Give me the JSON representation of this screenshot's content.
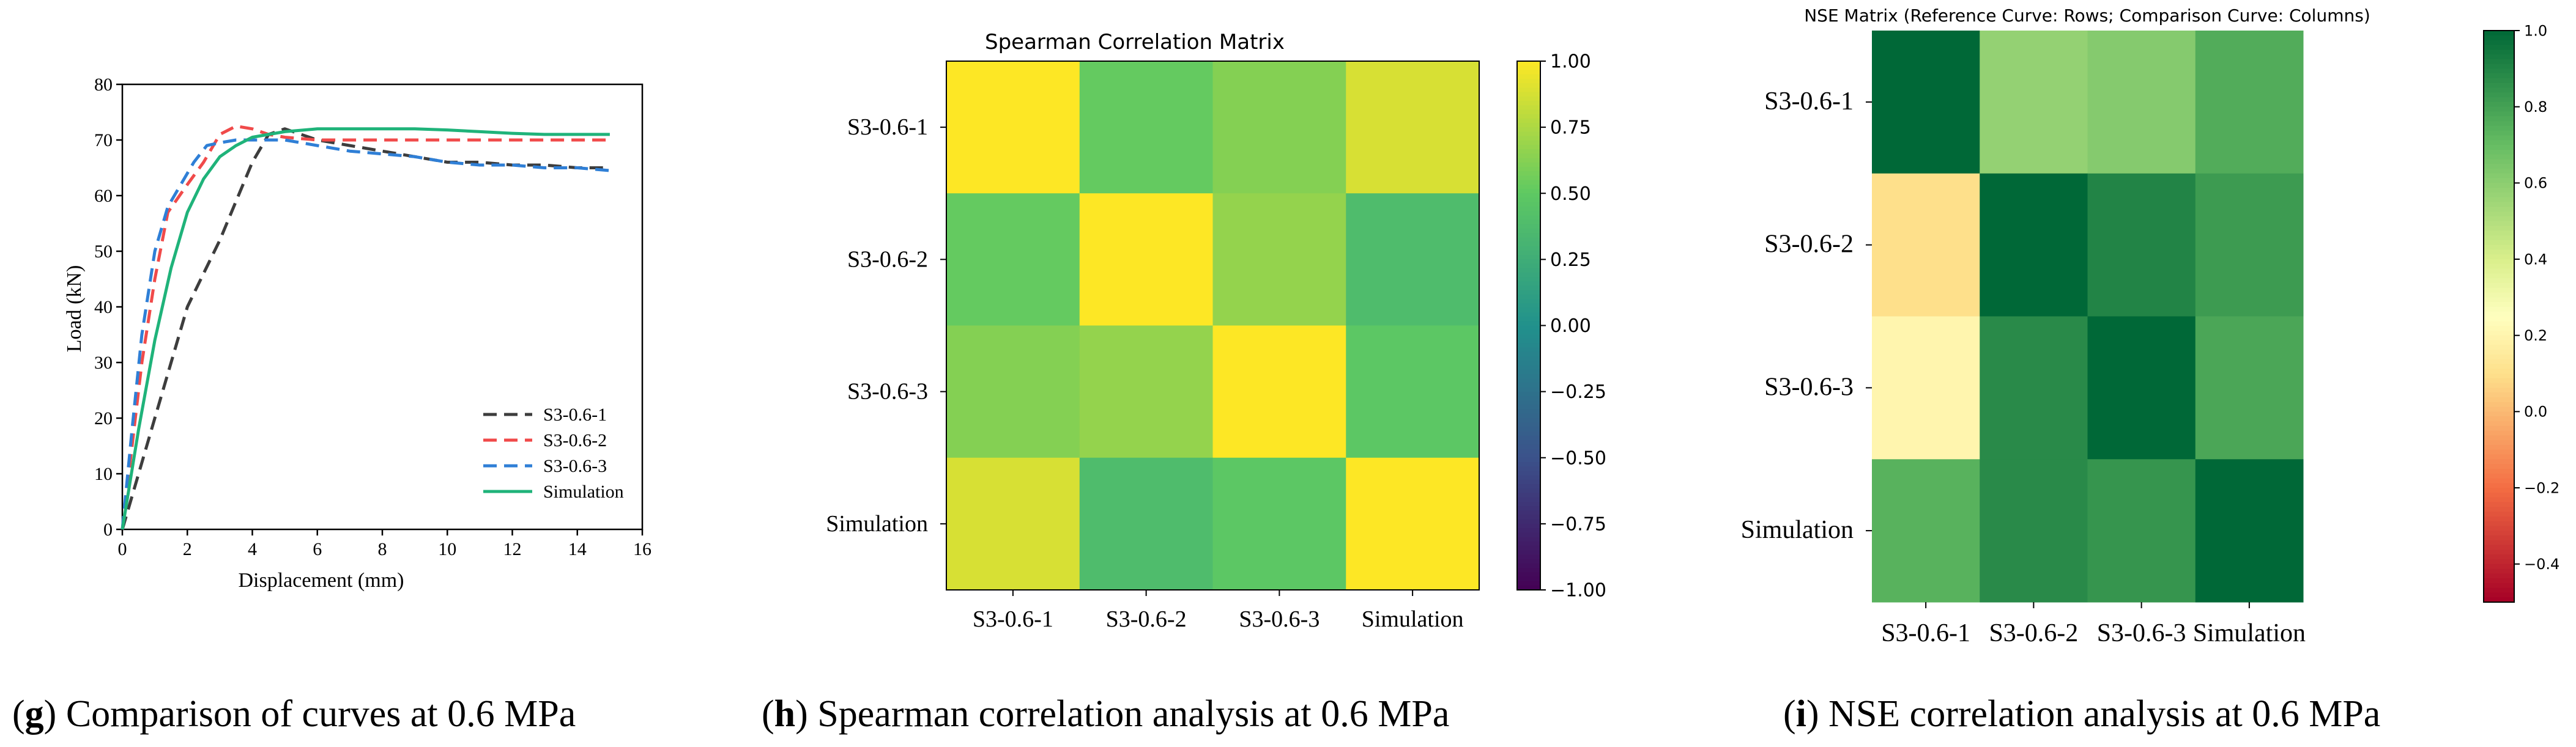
{
  "chart_data": [
    {
      "type": "line",
      "panel": "g",
      "caption_letter": "g",
      "caption_text": " Comparison of curves at 0.6 MPa",
      "xlabel": "Displacement (mm)",
      "ylabel": "Load (kN)",
      "xlim": [
        0,
        16
      ],
      "ylim": [
        0,
        80
      ],
      "xticks": [
        "0",
        "2",
        "4",
        "6",
        "8",
        "10",
        "12",
        "14",
        "16"
      ],
      "yticks": [
        "0",
        "10",
        "20",
        "30",
        "40",
        "50",
        "60",
        "70",
        "80"
      ],
      "legend_position": "bottom-right",
      "series": [
        {
          "name": "S3-0.6-1",
          "color": "#3d3d3d",
          "dash": "dashed",
          "x": [
            0,
            0.5,
            1,
            1.5,
            2,
            2.5,
            3,
            3.5,
            4,
            4.5,
            5,
            6,
            7,
            8,
            9,
            10,
            11,
            12,
            13,
            14,
            15
          ],
          "y": [
            0,
            10,
            20,
            30,
            40,
            46,
            52,
            59,
            66,
            71,
            72,
            70,
            69,
            68,
            67,
            66,
            66,
            65.5,
            65.5,
            65,
            65
          ]
        },
        {
          "name": "S3-0.6-2",
          "color": "#f04a4a",
          "dash": "dashed",
          "x": [
            0,
            0.3,
            0.6,
            1,
            1.4,
            2,
            2.5,
            3,
            3.5,
            4,
            4.5,
            5,
            6,
            7,
            8,
            9,
            10,
            11,
            12,
            13,
            14,
            15
          ],
          "y": [
            0,
            15,
            30,
            45,
            57,
            62,
            66,
            71,
            72.5,
            72,
            71,
            70.5,
            70,
            70,
            70,
            70,
            70,
            70,
            70,
            70,
            70,
            70
          ]
        },
        {
          "name": "S3-0.6-3",
          "color": "#2f7fd6",
          "dash": "dashed",
          "x": [
            0,
            0.3,
            0.6,
            1,
            1.4,
            1.8,
            2.2,
            2.6,
            3,
            3.5,
            4,
            4.5,
            5,
            6,
            7,
            8,
            9,
            10,
            11,
            12,
            13,
            14,
            15
          ],
          "y": [
            0,
            18,
            35,
            50,
            58,
            62,
            66,
            69,
            69.5,
            70,
            70,
            70,
            70,
            69,
            68,
            67.5,
            67,
            66,
            65.5,
            65.5,
            65,
            65,
            64.5
          ]
        },
        {
          "name": "Simulation",
          "color": "#1fb37a",
          "dash": "solid",
          "x": [
            0,
            0.5,
            1,
            1.5,
            2,
            2.5,
            3,
            3.5,
            4,
            4.5,
            5,
            6,
            7,
            8,
            9,
            10,
            11,
            12,
            13,
            14,
            15
          ],
          "y": [
            0,
            18,
            34,
            47,
            57,
            63,
            67,
            69,
            70.5,
            71,
            71.5,
            72,
            72,
            72,
            72,
            71.8,
            71.5,
            71.2,
            71,
            71,
            71
          ]
        }
      ]
    },
    {
      "type": "heatmap",
      "panel": "h",
      "title": "Spearman Correlation Matrix",
      "caption_letter": "h",
      "caption_text": " Spearman correlation analysis at 0.6 MPa",
      "rows": [
        "S3-0.6-1",
        "S3-0.6-2",
        "S3-0.6-3",
        "Simulation"
      ],
      "columns": [
        "S3-0.6-1",
        "S3-0.6-2",
        "S3-0.6-3",
        "Simulation"
      ],
      "values": [
        [
          1.0,
          0.52,
          0.62,
          0.88
        ],
        [
          0.52,
          1.0,
          0.67,
          0.38
        ],
        [
          0.62,
          0.67,
          1.0,
          0.48
        ],
        [
          0.88,
          0.38,
          0.48,
          1.0
        ]
      ],
      "vmin": -1.0,
      "vmax": 1.0,
      "colormap": "viridis",
      "colorbar_ticks": [
        "1.00",
        "0.75",
        "0.50",
        "0.25",
        "0.00",
        "−0.25",
        "−0.50",
        "−0.75",
        "−1.00"
      ]
    },
    {
      "type": "heatmap",
      "panel": "i",
      "title": "NSE Matrix (Reference Curve: Rows; Comparison Curve: Columns)",
      "caption_letter": "i",
      "caption_text": " NSE correlation analysis at 0.6 MPa",
      "rows": [
        "S3-0.6-1",
        "S3-0.6-2",
        "S3-0.6-3",
        "Simulation"
      ],
      "columns": [
        "S3-0.6-1",
        "S3-0.6-2",
        "S3-0.6-3",
        "Simulation"
      ],
      "values": [
        [
          1.0,
          0.58,
          0.62,
          0.76
        ],
        [
          0.1,
          1.0,
          0.9,
          0.82
        ],
        [
          0.2,
          0.88,
          1.0,
          0.78
        ],
        [
          0.74,
          0.88,
          0.84,
          1.0
        ]
      ],
      "vmin": -0.5,
      "vmax": 1.0,
      "colormap": "RdYlGn",
      "colorbar_ticks": [
        "1.0",
        "0.8",
        "0.6",
        "0.4",
        "0.2",
        "0.0",
        "−0.2",
        "−0.4"
      ]
    }
  ]
}
